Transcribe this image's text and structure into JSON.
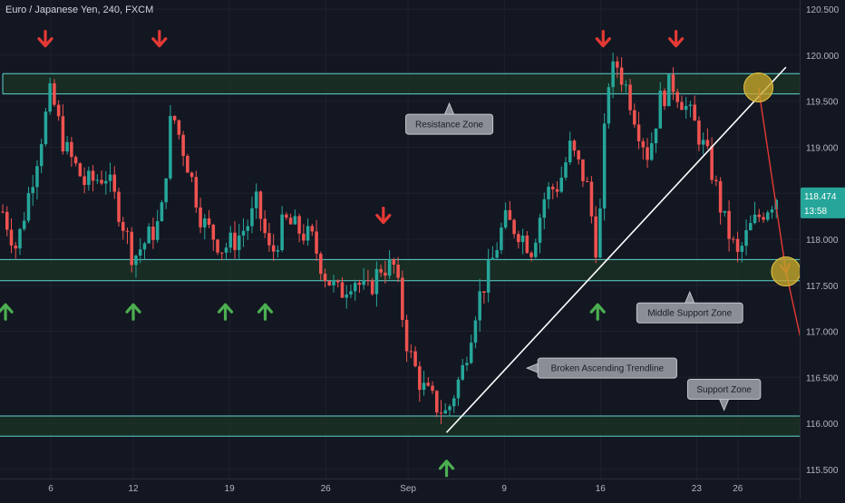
{
  "header": {
    "title": "Euro / Japanese Yen, 240, FXCM"
  },
  "colors": {
    "background": "#131722",
    "up": "#26a69a",
    "down": "#ef5350",
    "zone_line": "#5fd3d0",
    "zone_fill": "#1a3226",
    "trendline": "#ffffff",
    "projection": "#e53935",
    "target": "#c8a62a",
    "callout_bg": "#8a8e96",
    "arrow_down": "#e53935",
    "arrow_up": "#4caf50",
    "price_badge": "#26a69a"
  },
  "price_badge": {
    "price": "118.474",
    "countdown": "13:58"
  },
  "chart_data": {
    "type": "candlestick",
    "title": "Euro / Japanese Yen, 240, FXCM",
    "ylim": [
      115.4,
      120.6
    ],
    "y_ticks": [
      "115.500",
      "116.000",
      "116.500",
      "117.000",
      "117.500",
      "118.000",
      "118.500",
      "119.000",
      "119.500",
      "120.000",
      "120.500"
    ],
    "x_ticks": [
      {
        "label": "6",
        "day": 6
      },
      {
        "label": "12",
        "day": 12
      },
      {
        "label": "19",
        "day": 19
      },
      {
        "label": "26",
        "day": 26
      },
      {
        "label": "Sep",
        "day": 32
      },
      {
        "label": "9",
        "day": 39
      },
      {
        "label": "16",
        "day": 46
      },
      {
        "label": "23",
        "day": 53
      },
      {
        "label": "26",
        "day": 56
      }
    ],
    "x_range": [
      2.3,
      60.5
    ],
    "path_points": [
      {
        "day": 2.5,
        "price": 118.3
      },
      {
        "day": 3.5,
        "price": 117.9
      },
      {
        "day": 5.0,
        "price": 118.9
      },
      {
        "day": 6.0,
        "price": 119.6
      },
      {
        "day": 7.0,
        "price": 119.0
      },
      {
        "day": 8.5,
        "price": 118.6
      },
      {
        "day": 10.0,
        "price": 118.7
      },
      {
        "day": 11.0,
        "price": 118.3
      },
      {
        "day": 12.0,
        "price": 117.8
      },
      {
        "day": 13.0,
        "price": 118.0
      },
      {
        "day": 14.0,
        "price": 118.2
      },
      {
        "day": 14.8,
        "price": 119.4
      },
      {
        "day": 16.0,
        "price": 118.8
      },
      {
        "day": 17.0,
        "price": 118.2
      },
      {
        "day": 18.5,
        "price": 117.9
      },
      {
        "day": 19.5,
        "price": 118.0
      },
      {
        "day": 20.5,
        "price": 118.2
      },
      {
        "day": 21.0,
        "price": 118.4
      },
      {
        "day": 22.0,
        "price": 117.8
      },
      {
        "day": 23.0,
        "price": 118.2
      },
      {
        "day": 24.0,
        "price": 118.1
      },
      {
        "day": 25.0,
        "price": 118.0
      },
      {
        "day": 26.0,
        "price": 117.6
      },
      {
        "day": 27.0,
        "price": 117.4
      },
      {
        "day": 28.0,
        "price": 117.6
      },
      {
        "day": 29.0,
        "price": 117.4
      },
      {
        "day": 30.0,
        "price": 117.7
      },
      {
        "day": 31.0,
        "price": 117.7
      },
      {
        "day": 32.0,
        "price": 116.8
      },
      {
        "day": 33.0,
        "price": 116.4
      },
      {
        "day": 34.0,
        "price": 116.2
      },
      {
        "day": 34.8,
        "price": 116.1
      },
      {
        "day": 36.0,
        "price": 116.6
      },
      {
        "day": 37.0,
        "price": 117.3
      },
      {
        "day": 38.0,
        "price": 117.7
      },
      {
        "day": 39.0,
        "price": 118.2
      },
      {
        "day": 40.0,
        "price": 118.1
      },
      {
        "day": 41.0,
        "price": 117.9
      },
      {
        "day": 42.0,
        "price": 118.5
      },
      {
        "day": 43.0,
        "price": 118.6
      },
      {
        "day": 43.8,
        "price": 119.0
      },
      {
        "day": 45.0,
        "price": 118.6
      },
      {
        "day": 45.8,
        "price": 117.8
      },
      {
        "day": 46.5,
        "price": 119.7
      },
      {
        "day": 47.2,
        "price": 119.9
      },
      {
        "day": 48.0,
        "price": 119.6
      },
      {
        "day": 48.8,
        "price": 119.2
      },
      {
        "day": 49.5,
        "price": 118.9
      },
      {
        "day": 50.3,
        "price": 119.5
      },
      {
        "day": 51.2,
        "price": 119.7
      },
      {
        "day": 52.0,
        "price": 119.5
      },
      {
        "day": 53.0,
        "price": 119.2
      },
      {
        "day": 54.0,
        "price": 118.8
      },
      {
        "day": 55.0,
        "price": 118.2
      },
      {
        "day": 56.0,
        "price": 117.8
      },
      {
        "day": 56.8,
        "price": 118.1
      },
      {
        "day": 57.8,
        "price": 118.3
      },
      {
        "day": 58.8,
        "price": 118.47
      }
    ],
    "zones": [
      {
        "name": "resistance",
        "top": 119.8,
        "bottom": 119.58,
        "from_day": 2.5,
        "to_day": 60.5
      },
      {
        "name": "middle-support",
        "top": 117.78,
        "bottom": 117.55,
        "from_day": 2.3,
        "to_day": 60.5
      },
      {
        "name": "support",
        "top": 116.08,
        "bottom": 115.86,
        "from_day": 2.3,
        "to_day": 60.5
      }
    ],
    "trendline": {
      "from": {
        "day": 34.8,
        "price": 115.9
      },
      "to": {
        "day": 59.5,
        "price": 119.87
      }
    },
    "projection": [
      {
        "day": 57.5,
        "price": 119.65
      },
      {
        "day": 59.5,
        "price": 117.65
      },
      {
        "day": 62.0,
        "price": 115.95
      }
    ],
    "down_arrows": [
      {
        "day": 5.6,
        "price": 120.17
      },
      {
        "day": 13.9,
        "price": 120.17
      },
      {
        "day": 30.2,
        "price": 118.25
      },
      {
        "day": 46.2,
        "price": 120.17
      },
      {
        "day": 51.5,
        "price": 120.17
      }
    ],
    "up_arrows": [
      {
        "day": 2.7,
        "price": 117.22
      },
      {
        "day": 12.0,
        "price": 117.22
      },
      {
        "day": 18.7,
        "price": 117.22
      },
      {
        "day": 21.6,
        "price": 117.22
      },
      {
        "day": 45.8,
        "price": 117.22
      },
      {
        "day": 34.8,
        "price": 115.52
      }
    ],
    "annotations": [
      {
        "text": "Resistance Zone",
        "day": 35.0,
        "price": 119.25,
        "pointer": "up"
      },
      {
        "text": "Middle Support Zone",
        "day": 52.5,
        "price": 117.2,
        "pointer": "up"
      },
      {
        "text": "Broken Ascending Trendline",
        "day": 46.5,
        "price": 116.6,
        "pointer": "left"
      },
      {
        "text": "Support Zone",
        "day": 55.0,
        "price": 116.37,
        "pointer": "down"
      }
    ]
  }
}
